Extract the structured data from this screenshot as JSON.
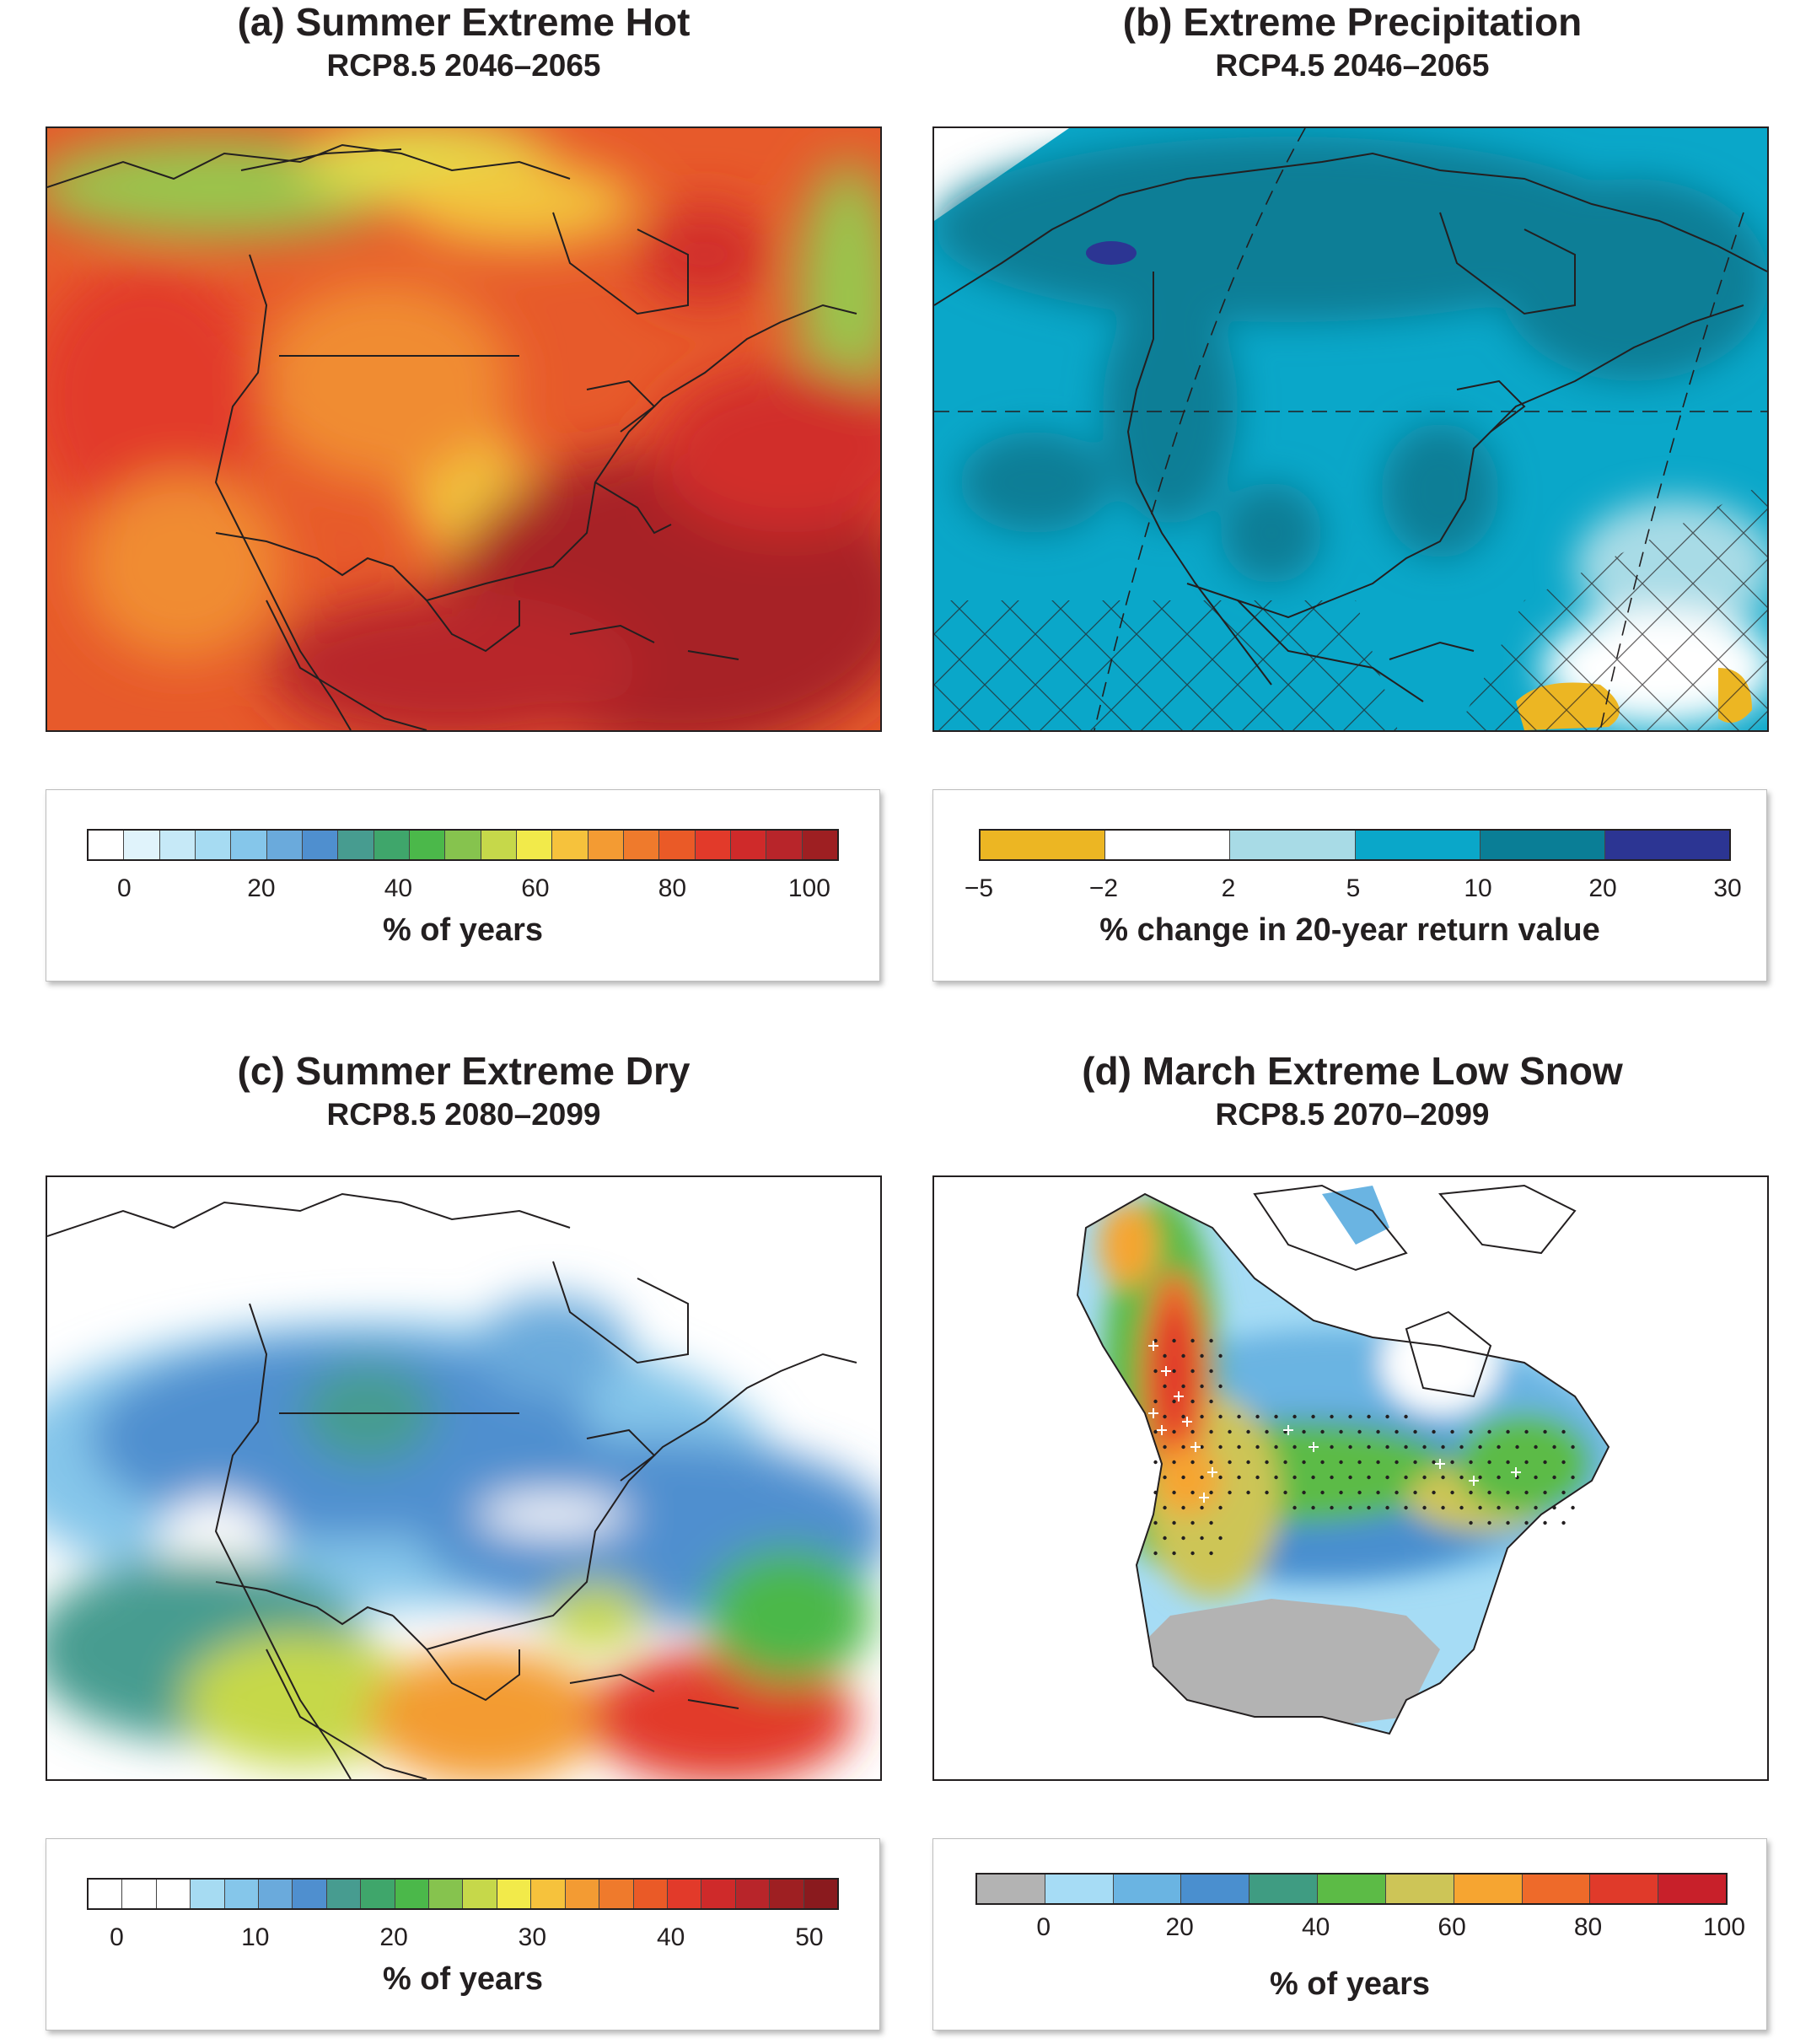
{
  "panels": [
    {
      "title": "(a) Summer Extreme Hot",
      "subtitle": "RCP8.5 2046–2065",
      "legend": {
        "colors": [
          "#ffffff",
          "#e0f3fb",
          "#c6e9f7",
          "#a6dbf2",
          "#85c6ea",
          "#6aaadc",
          "#4f8fcf",
          "#479c90",
          "#3fa66b",
          "#4bb84a",
          "#86c34e",
          "#c6d84a",
          "#f2ea4a",
          "#f6c23c",
          "#f39b33",
          "#ef7a2c",
          "#ea5a27",
          "#e23a2a",
          "#cf2a2a",
          "#b8252a",
          "#9e1f22"
        ],
        "ticks": [
          "0",
          "20",
          "40",
          "60",
          "80",
          "100"
        ],
        "unit": "% of years"
      }
    },
    {
      "title": "(b) Extreme Precipitation",
      "subtitle": "RCP4.5 2046–2065",
      "legend": {
        "colors": [
          "#ecb623",
          "#ffffff",
          "#a8dbe6",
          "#0aa7c9",
          "#0a7e96",
          "#2c3593"
        ],
        "ticks": [
          "−5",
          "−2",
          "2",
          "5",
          "10",
          "20",
          "30"
        ],
        "unit": "% change in 20-year return value"
      }
    },
    {
      "title": "(c) Summer Extreme Dry",
      "subtitle": "RCP8.5 2080–2099",
      "legend": {
        "colors": [
          "#ffffff",
          "#ffffff",
          "#ffffff",
          "#a6dbf2",
          "#85c6ea",
          "#6aaadc",
          "#4f8fcf",
          "#479c90",
          "#3fa66b",
          "#4bb84a",
          "#86c34e",
          "#c6d84a",
          "#f2ea4a",
          "#f6c23c",
          "#f39b33",
          "#ef7a2c",
          "#ea5a27",
          "#e23a2a",
          "#cf2a2a",
          "#b8252a",
          "#9e1f22",
          "#8a1a1e"
        ],
        "ticks": [
          "0",
          "10",
          "20",
          "30",
          "40",
          "50"
        ],
        "unit": "% of years"
      }
    },
    {
      "title": "(d) March Extreme Low Snow",
      "subtitle": "RCP8.5 2070–2099",
      "legend": {
        "colors": [
          "#b3b3b3",
          "#a6dcf5",
          "#6ab4e2",
          "#4a8fcf",
          "#3f9c82",
          "#5cbb46",
          "#cdc557",
          "#f6a531",
          "#ee6a2a",
          "#e03a2a",
          "#c8202a"
        ],
        "ticks": [
          "0",
          "20",
          "40",
          "60",
          "80",
          "100"
        ],
        "unit": "% of years"
      }
    }
  ]
}
